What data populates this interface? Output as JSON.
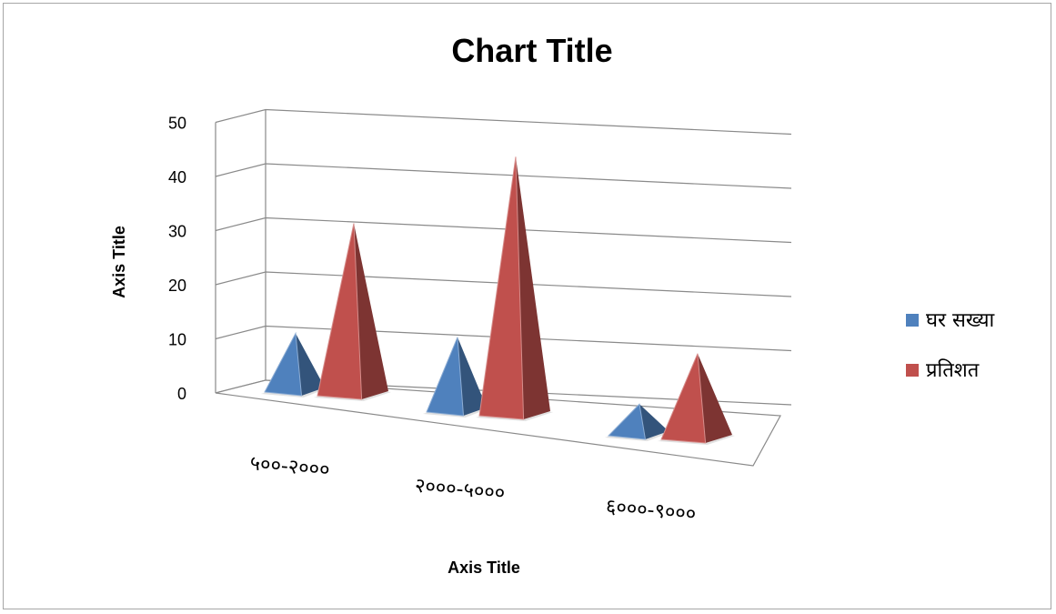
{
  "chart_data": {
    "type": "bar",
    "title": "Chart Title",
    "xlabel": "Axis Title",
    "ylabel": "Axis Title",
    "ylim": [
      0,
      50
    ],
    "yticks": [
      "0",
      "10",
      "20",
      "30",
      "40",
      "50"
    ],
    "categories": [
      "५००-२०००",
      "२०००-५०००",
      "६०००-९०००"
    ],
    "series": [
      {
        "name": "घर सख्या",
        "values": [
          10,
          13,
          5
        ],
        "color": "#4f81bd"
      },
      {
        "name": "प्रतिशत",
        "values": [
          31,
          47,
          15
        ],
        "color": "#c0504d"
      }
    ],
    "grid": true,
    "legend": "right",
    "style": "3d-pyramid"
  }
}
